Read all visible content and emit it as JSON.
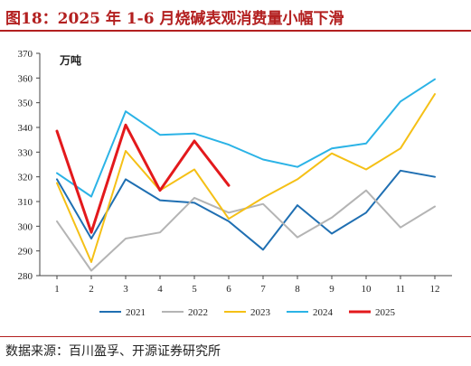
{
  "page": {
    "title": "图18：2025 年 1-6 月烧碱表观消费量小幅下滑",
    "source": "数据来源：百川盈孚、开源证券研究所"
  },
  "chart_data": {
    "type": "line",
    "unit_label": "万吨",
    "x": [
      1,
      2,
      3,
      4,
      5,
      6,
      7,
      8,
      9,
      10,
      11,
      12
    ],
    "ylim": [
      280,
      370
    ],
    "yticks": [
      280,
      290,
      300,
      310,
      320,
      330,
      340,
      350,
      360,
      370
    ],
    "grid": false,
    "legend_position": "bottom",
    "series": [
      {
        "name": "2021",
        "color": "#1f6fb2",
        "values": [
          319,
          295,
          319,
          310.5,
          309.5,
          302,
          290.5,
          308.5,
          297,
          305.5,
          322.5,
          320
        ]
      },
      {
        "name": "2022",
        "color": "#b4b4b4",
        "values": [
          302,
          282,
          295,
          297.5,
          311.5,
          305.5,
          309,
          295.5,
          303.5,
          314.5,
          299.5,
          308
        ]
      },
      {
        "name": "2023",
        "color": "#f5c016",
        "values": [
          317.5,
          285.5,
          330.5,
          314.5,
          323,
          303,
          311.5,
          319,
          329.5,
          323,
          331.5,
          353.5
        ]
      },
      {
        "name": "2024",
        "color": "#2bb3e6",
        "values": [
          321.5,
          312,
          346.5,
          337,
          337.5,
          333,
          327,
          324,
          331.5,
          333.5,
          350.5,
          359.5
        ]
      },
      {
        "name": "2025",
        "color": "#e3191c",
        "values": [
          338.5,
          297.5,
          341,
          314.5,
          334.5,
          316.5,
          null,
          null,
          null,
          null,
          null,
          null
        ]
      }
    ]
  }
}
